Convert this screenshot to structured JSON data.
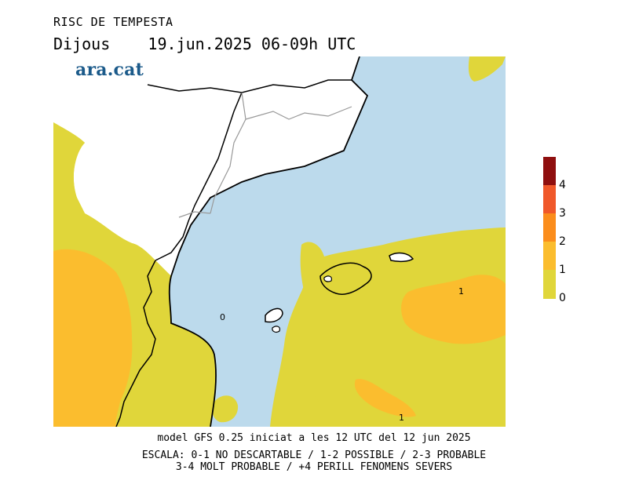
{
  "title": "RISC DE TEMPESTA",
  "subtitle": "Dijous    19.jun.2025 06-09h UTC",
  "logo_text": "ara.cat",
  "map": {
    "contour_labels": [
      "0",
      "1",
      "1"
    ],
    "colors": {
      "sea": "#bcdaec",
      "land_outside": "#ffffff",
      "level_0_1": "#e0d63a",
      "level_1_2": "#fbbd2e",
      "level_2_3": "#fb8d1c",
      "level_3_4": "#f0582a",
      "level_4_plus": "#8f0f0f",
      "coastline": "#000000",
      "borders": "#999999"
    }
  },
  "legend": {
    "levels": [
      {
        "label": "4",
        "color": "#8f0f0f"
      },
      {
        "label": "3",
        "color": "#f0582a"
      },
      {
        "label": "2",
        "color": "#fb8d1c"
      },
      {
        "label": "1",
        "color": "#fbbd2e"
      },
      {
        "label": "0",
        "color": "#e0d63a"
      }
    ]
  },
  "footer": {
    "model": "model GFS 0.25 iniciat a les 12 UTC del 12 jun 2025",
    "scale_line1": "ESCALA: 0-1 NO DESCARTABLE / 1-2 POSSIBLE / 2-3 PROBABLE",
    "scale_line2": "3-4 MOLT PROBABLE / +4 PERILL FENOMENS SEVERS"
  }
}
